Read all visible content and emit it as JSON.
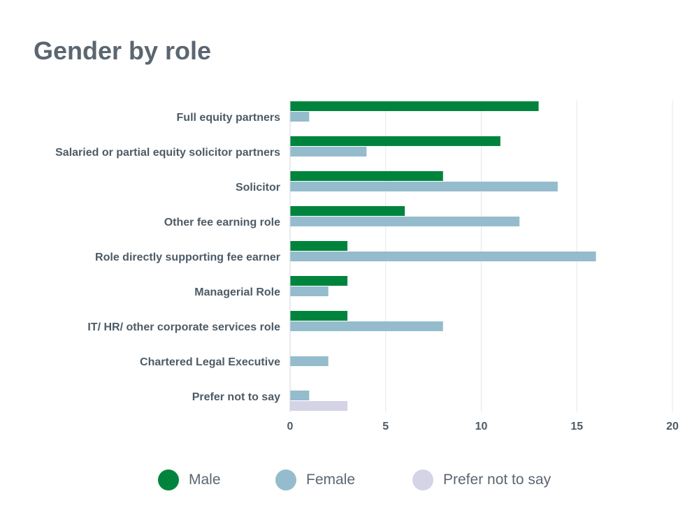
{
  "chart_data": {
    "type": "bar",
    "orientation": "horizontal",
    "title": "Gender by role",
    "categories": [
      "Full equity partners",
      "Salaried or partial equity solicitor partners",
      "Solicitor",
      "Other fee earning role",
      "Role directly supporting fee earner",
      "Managerial Role",
      "IT/ HR/ other corporate services role",
      "Chartered Legal Executive",
      "Prefer not to say"
    ],
    "series": [
      {
        "name": "Male",
        "color": "#00843d",
        "values": [
          13,
          11,
          8,
          6,
          3,
          3,
          3,
          0,
          0
        ]
      },
      {
        "name": "Female",
        "color": "#94bccc",
        "values": [
          1,
          4,
          14,
          12,
          16,
          2,
          8,
          2,
          1
        ]
      },
      {
        "name": "Prefer not to say",
        "color": "#d5d3e6",
        "values": [
          0,
          0,
          0,
          0,
          0,
          0,
          0,
          0,
          3
        ]
      }
    ],
    "xlim": [
      0,
      20
    ],
    "xticks": [
      "0",
      "5",
      "10",
      "15",
      "20"
    ],
    "grid": "vertical",
    "legend": "bottom"
  }
}
